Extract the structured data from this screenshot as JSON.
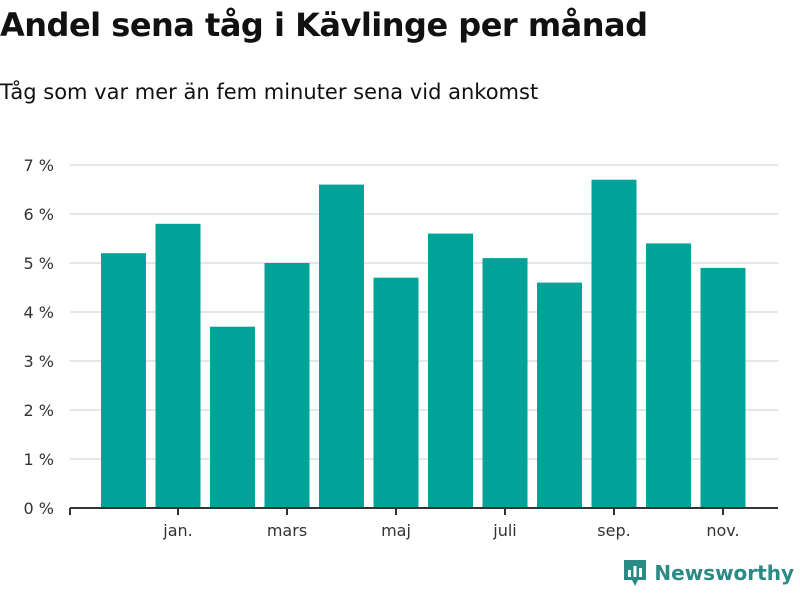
{
  "chart_data": {
    "type": "bar",
    "title": "Andel sena tåg i Kävlinge per månad",
    "subtitle": "Tåg som var mer än fem minuter sena vid ankomst",
    "xlabel": "",
    "ylabel": "",
    "ylim": [
      0,
      7
    ],
    "y_ticks": [
      0,
      1,
      2,
      3,
      4,
      5,
      6,
      7
    ],
    "y_tick_labels": [
      "0 %",
      "1 %",
      "2 %",
      "3 %",
      "4 %",
      "5 %",
      "6 %",
      "7 %"
    ],
    "x_tick_labels": [
      {
        "label": "jan.",
        "index": 1
      },
      {
        "label": "mars",
        "index": 3
      },
      {
        "label": "maj",
        "index": 5
      },
      {
        "label": "juli",
        "index": 7
      },
      {
        "label": "sep.",
        "index": 9
      },
      {
        "label": "nov.",
        "index": 11
      }
    ],
    "series": [
      {
        "name": "Andel sena tåg",
        "values": [
          5.2,
          5.8,
          3.7,
          5.0,
          6.6,
          4.7,
          5.6,
          5.1,
          4.6,
          6.7,
          5.4,
          4.9
        ]
      }
    ],
    "grid": true,
    "colors": {
      "bar": "#00a398",
      "grid": "#dddddd",
      "axis": "#333333"
    }
  },
  "brand": {
    "name": "Newsworthy",
    "color": "#2a8a86"
  }
}
